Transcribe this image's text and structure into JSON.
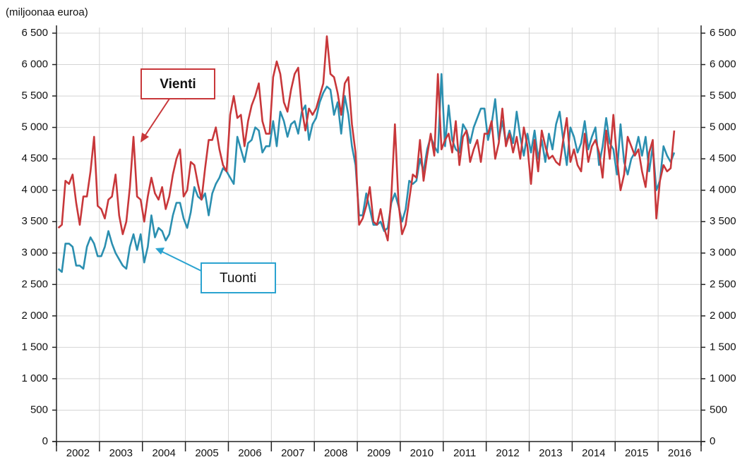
{
  "chart_data": {
    "type": "line",
    "ylabel": "(miljoonaa euroa)",
    "categories": [
      null,
      null,
      null,
      null,
      null,
      null,
      "2002",
      null,
      null,
      null,
      null,
      null,
      null,
      null,
      null,
      null,
      null,
      null,
      "2003",
      null,
      null,
      null,
      null,
      null,
      null,
      null,
      null,
      null,
      null,
      null,
      "2004",
      null,
      null,
      null,
      null,
      null,
      null,
      null,
      null,
      null,
      null,
      null,
      "2005",
      null,
      null,
      null,
      null,
      null,
      null,
      null,
      null,
      null,
      null,
      null,
      "2006",
      null,
      null,
      null,
      null,
      null,
      null,
      null,
      null,
      null,
      null,
      null,
      "2007",
      null,
      null,
      null,
      null,
      null,
      null,
      null,
      null,
      null,
      null,
      null,
      "2008",
      null,
      null,
      null,
      null,
      null,
      null,
      null,
      null,
      null,
      null,
      null,
      "2009",
      null,
      null,
      null,
      null,
      null,
      null,
      null,
      null,
      null,
      null,
      null,
      "2010",
      null,
      null,
      null,
      null,
      null,
      null,
      null,
      null,
      null,
      null,
      null,
      "2011",
      null,
      null,
      null,
      null,
      null,
      null,
      null,
      null,
      null,
      null,
      null,
      "2012",
      null,
      null,
      null,
      null,
      null,
      null,
      null,
      null,
      null,
      null,
      null,
      "2013",
      null,
      null,
      null,
      null,
      null,
      null,
      null,
      null,
      null,
      null,
      null,
      "2014",
      null,
      null,
      null,
      null,
      null,
      null,
      null,
      null,
      null,
      null,
      null,
      "2015",
      null,
      null,
      null,
      null,
      null,
      null,
      null,
      null,
      null,
      null,
      null,
      "2016",
      null,
      null,
      null,
      null,
      null
    ],
    "series": [
      {
        "name": "Vienti",
        "color": "#c8373a",
        "values": [
          3400,
          3450,
          4150,
          4100,
          4250,
          3800,
          3450,
          3900,
          3900,
          4300,
          4850,
          3750,
          3700,
          3550,
          3850,
          3900,
          4250,
          3600,
          3300,
          3500,
          4050,
          4850,
          3900,
          3850,
          3500,
          3900,
          4200,
          3950,
          3850,
          4050,
          3700,
          3900,
          4250,
          4500,
          4650,
          3900,
          4000,
          4450,
          4400,
          4100,
          3850,
          4350,
          4800,
          4800,
          5000,
          4650,
          4400,
          4300,
          5200,
          5500,
          5150,
          5200,
          4700,
          5100,
          5350,
          5500,
          5700,
          5100,
          4900,
          4900,
          5800,
          6050,
          5850,
          5400,
          5250,
          5600,
          5850,
          5950,
          5300,
          4950,
          5300,
          5200,
          5300,
          5500,
          5700,
          6450,
          5850,
          5800,
          5550,
          5200,
          5700,
          5800,
          5050,
          4600,
          3450,
          3550,
          3750,
          4050,
          3500,
          3450,
          3700,
          3400,
          3200,
          3900,
          5050,
          3800,
          3300,
          3450,
          3850,
          4250,
          4200,
          4800,
          4150,
          4550,
          4900,
          4550,
          5850,
          4650,
          4800,
          4900,
          4600,
          5100,
          4400,
          4850,
          4950,
          4450,
          4650,
          4800,
          4450,
          4900,
          4900,
          5100,
          4500,
          4750,
          5300,
          4700,
          4900,
          4600,
          4850,
          4500,
          5000,
          4700,
          4100,
          4800,
          4300,
          4950,
          4700,
          4500,
          4550,
          4450,
          4400,
          4800,
          5150,
          4450,
          4650,
          4400,
          4300,
          4900,
          4450,
          4700,
          4800,
          4600,
          4200,
          4950,
          4500,
          5200,
          4500,
          4000,
          4250,
          4850,
          4700,
          4550,
          4650,
          4300,
          4050,
          4600,
          4800,
          3550,
          4150,
          4400,
          4300,
          4350,
          4950,
          null,
          null,
          null,
          null,
          null,
          null,
          null
        ]
      },
      {
        "name": "Tuonti",
        "color": "#2b8fb0",
        "values": [
          2750,
          2700,
          3150,
          3150,
          3100,
          2800,
          2800,
          2750,
          3100,
          3250,
          3150,
          2950,
          2950,
          3100,
          3350,
          3150,
          3000,
          2900,
          2800,
          2750,
          3100,
          3300,
          3050,
          3300,
          2850,
          3100,
          3600,
          3250,
          3400,
          3350,
          3200,
          3300,
          3600,
          3800,
          3800,
          3550,
          3400,
          3650,
          4050,
          3900,
          3850,
          3950,
          3600,
          3950,
          4100,
          4200,
          4350,
          4300,
          4200,
          4100,
          4850,
          4650,
          4450,
          4750,
          4800,
          5000,
          4950,
          4600,
          4700,
          4700,
          5100,
          4700,
          5250,
          5100,
          4850,
          5050,
          5100,
          4900,
          5250,
          5350,
          4800,
          5050,
          5150,
          5400,
          5550,
          5650,
          5600,
          5200,
          5400,
          4900,
          5500,
          5200,
          4700,
          4400,
          3600,
          3600,
          3950,
          3700,
          3450,
          3450,
          3500,
          3350,
          3400,
          3800,
          3950,
          3750,
          3500,
          3700,
          4150,
          4100,
          4150,
          4500,
          4300,
          4650,
          4850,
          4700,
          4600,
          5850,
          4700,
          5350,
          4800,
          4650,
          4600,
          5050,
          4950,
          4750,
          5000,
          5150,
          5300,
          5300,
          4800,
          5050,
          5450,
          4800,
          5100,
          4750,
          4950,
          4750,
          5250,
          4850,
          4550,
          4900,
          4600,
          4950,
          4500,
          4800,
          4450,
          4900,
          4650,
          5050,
          5250,
          4800,
          4400,
          5000,
          4850,
          4600,
          4750,
          5100,
          4650,
          4850,
          5000,
          4400,
          4700,
          5150,
          4750,
          4650,
          4250,
          5050,
          4450,
          4250,
          4500,
          4600,
          4850,
          4550,
          4850,
          4300,
          4700,
          4000,
          4150,
          4700,
          4550,
          4450,
          4600,
          null,
          null,
          null,
          null,
          null,
          null,
          null
        ]
      }
    ],
    "ylim": [
      0,
      6500
    ],
    "yticks": [
      0,
      500,
      {
        "value": 1000,
        "label": "1 000"
      },
      {
        "value": 1500,
        "label": "1 500"
      },
      {
        "value": 2000,
        "label": "2 000"
      },
      {
        "value": 2500,
        "label": "2 500"
      },
      {
        "value": 3000,
        "label": "3 000"
      },
      {
        "value": 3500,
        "label": "3 500"
      },
      {
        "value": 4000,
        "label": "4 000"
      },
      {
        "value": 4500,
        "label": "4 500"
      },
      {
        "value": 5000,
        "label": "5 000"
      },
      {
        "value": 5500,
        "label": "5 500"
      },
      {
        "value": 6000,
        "label": "6 000"
      },
      {
        "value": 6500,
        "label": "6 500"
      }
    ],
    "grid": true
  }
}
